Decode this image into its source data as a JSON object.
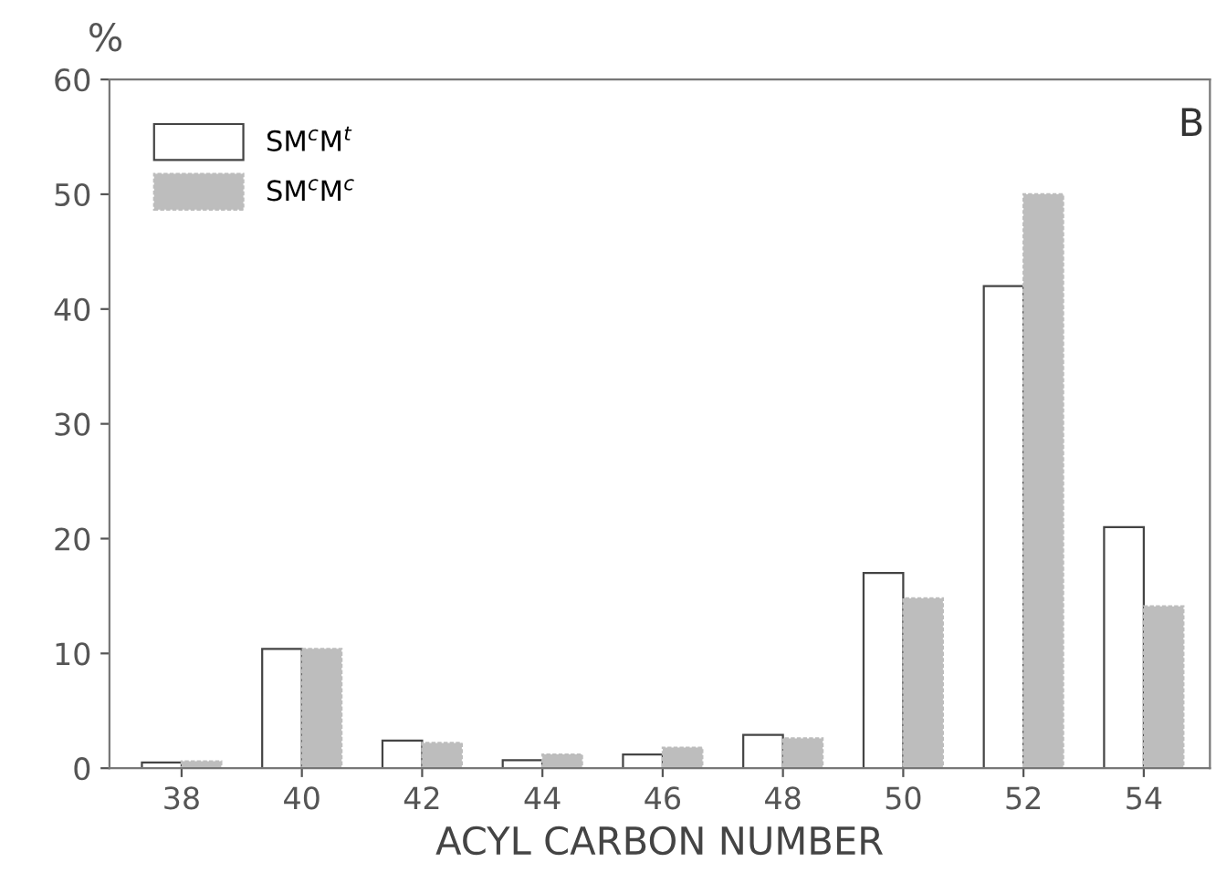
{
  "chart_data": {
    "type": "bar",
    "xlabel": "ACYL CARBON NUMBER",
    "ylabel": "%",
    "annotations": [
      "B"
    ],
    "categories": [
      "38",
      "40",
      "42",
      "44",
      "46",
      "48",
      "50",
      "52",
      "54"
    ],
    "series": [
      {
        "name": "SM$^{c}$M$^{t}$",
        "color": "#ffffff",
        "values": [
          0.5,
          10.4,
          2.4,
          0.7,
          1.2,
          2.9,
          17,
          42,
          21
        ]
      },
      {
        "name": "SM$^{c}$M$^{c}$",
        "color": "#bdbdbd",
        "values": [
          0.6,
          10.4,
          2.2,
          1.2,
          1.8,
          2.6,
          14.8,
          50,
          14.1
        ]
      }
    ],
    "ylim": [
      0,
      60
    ],
    "yticks": [
      0,
      10,
      20,
      30,
      40,
      50,
      60
    ],
    "grid": false,
    "legend": "top left"
  }
}
